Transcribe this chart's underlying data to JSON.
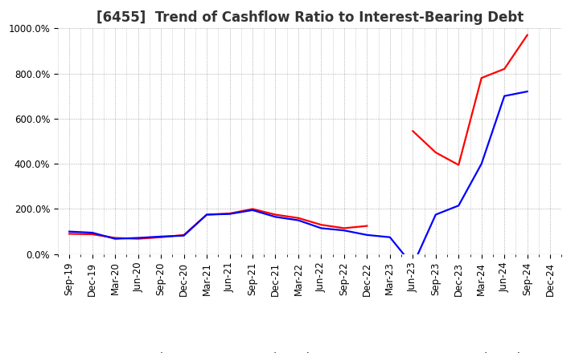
{
  "title": "[6455]  Trend of Cashflow Ratio to Interest-Bearing Debt",
  "x_labels": [
    "Sep-19",
    "Dec-19",
    "Mar-20",
    "Jun-20",
    "Sep-20",
    "Dec-20",
    "Mar-21",
    "Jun-21",
    "Sep-21",
    "Dec-21",
    "Mar-22",
    "Jun-22",
    "Sep-22",
    "Dec-22",
    "Mar-23",
    "Jun-23",
    "Sep-23",
    "Dec-23",
    "Mar-24",
    "Jun-24",
    "Sep-24",
    "Dec-24"
  ],
  "operating_cf": [
    90,
    88,
    72,
    68,
    75,
    85,
    175,
    180,
    200,
    175,
    160,
    130,
    115,
    125,
    null,
    545,
    450,
    395,
    780,
    820,
    970,
    null
  ],
  "free_cf": [
    100,
    95,
    68,
    72,
    78,
    82,
    175,
    178,
    195,
    165,
    150,
    115,
    105,
    85,
    75,
    -50,
    175,
    215,
    400,
    700,
    720,
    null
  ],
  "ylim_min": 0,
  "ylim_max": 1000,
  "yticks": [
    0,
    200,
    400,
    600,
    800,
    1000
  ],
  "ytick_labels": [
    "0.0%",
    "200.0%",
    "400.0%",
    "600.0%",
    "800.0%",
    "1000.0%"
  ],
  "line_color_operating": "#ff0000",
  "line_color_free": "#0000ff",
  "legend_operating": "Operating CF to Interest-Bearing Debt",
  "legend_free": "Free CF to Interest-Bearing Debt",
  "background_color": "#ffffff",
  "plot_bg_color": "#ffffff",
  "grid_color": "#999999",
  "title_fontsize": 12,
  "axis_fontsize": 8.5,
  "legend_fontsize": 9,
  "line_width": 1.6
}
